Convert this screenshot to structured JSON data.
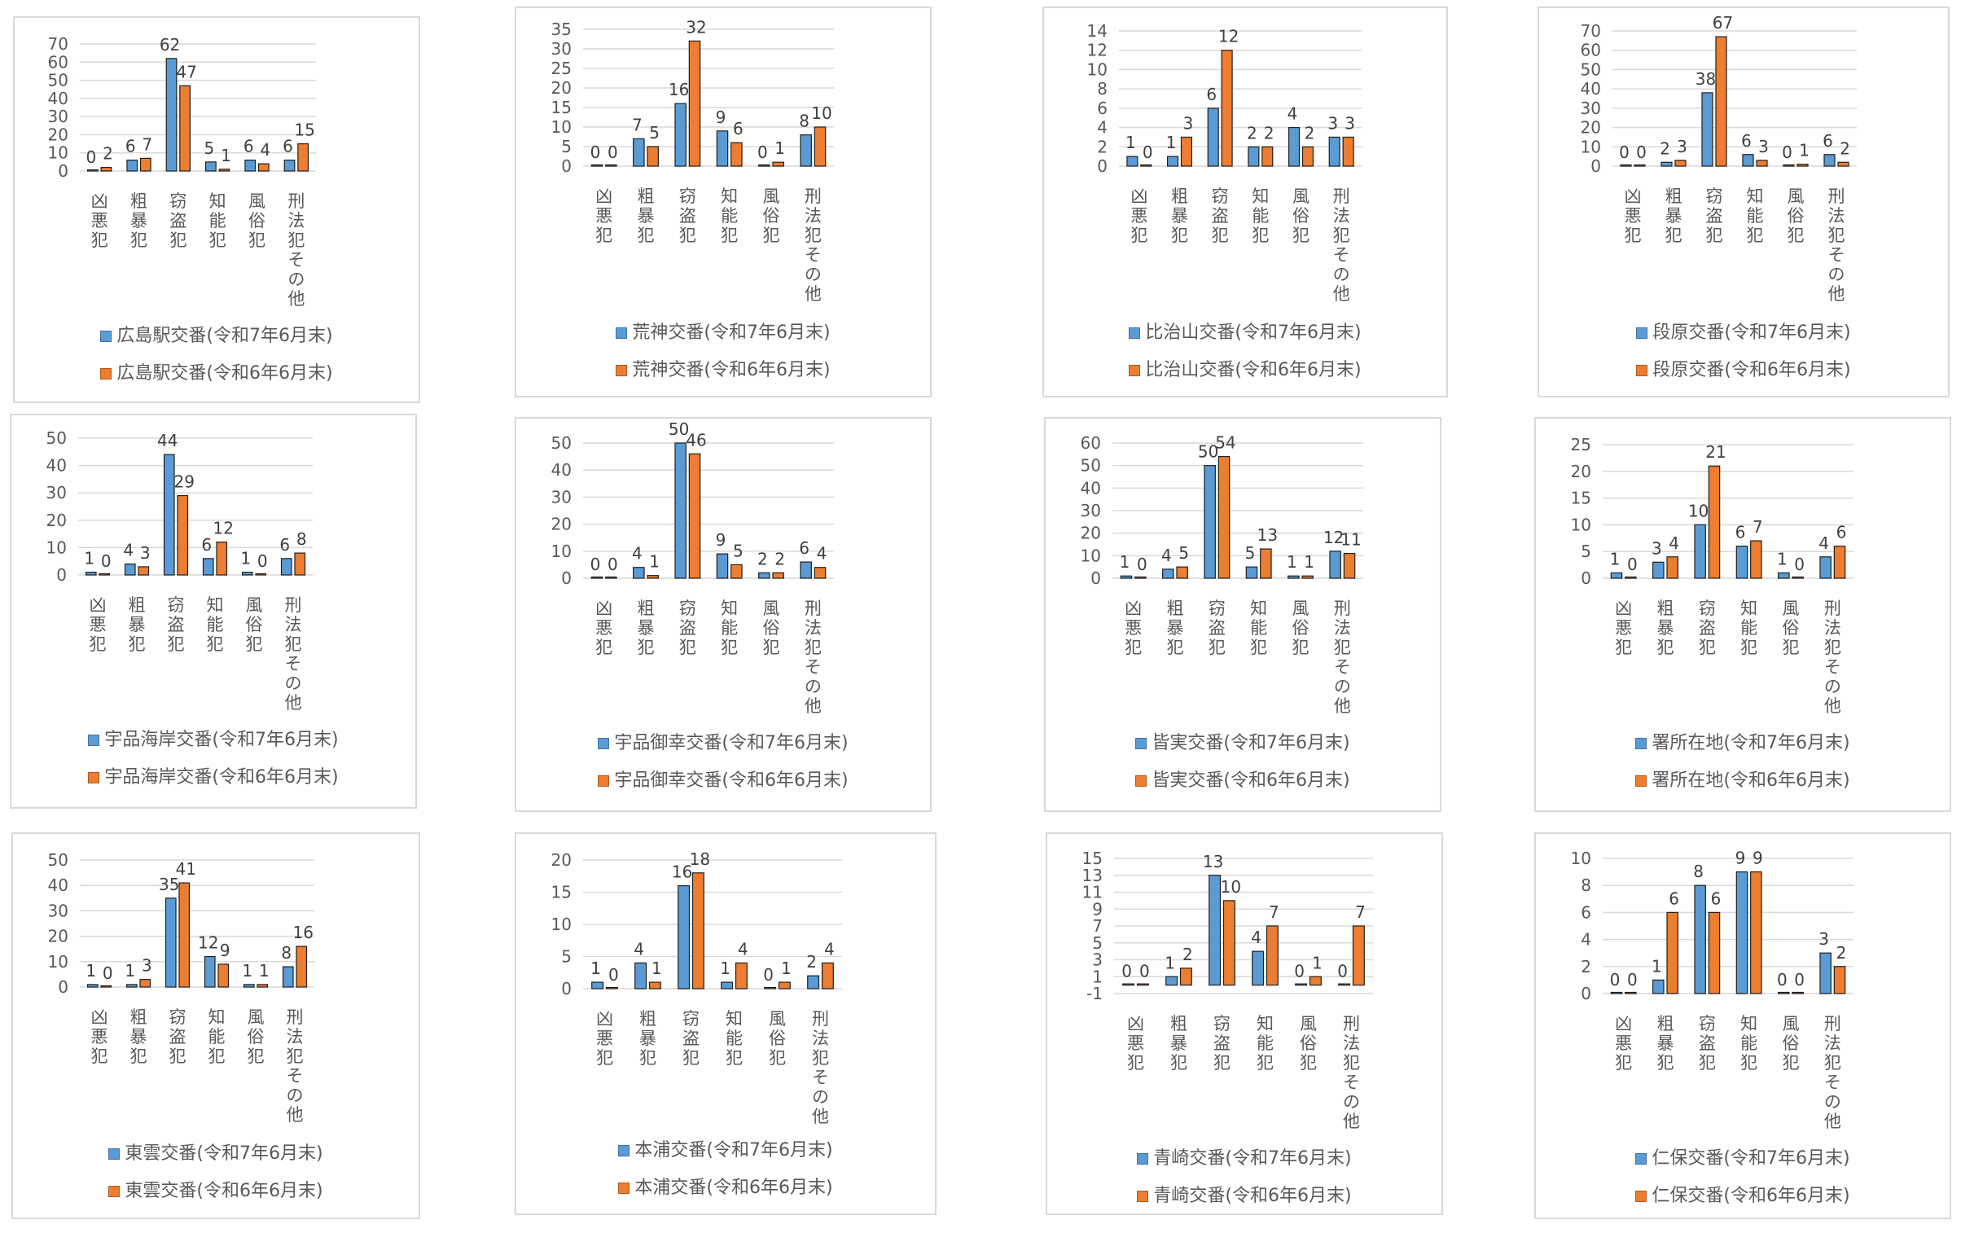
{
  "colors": {
    "series1": "#5b9bd5",
    "series2": "#ed7d31",
    "grid": "#d9d9d9",
    "axis_text": "#595959",
    "label_text": "#404040"
  },
  "categories": [
    "凶悪犯",
    "粗暴犯",
    "窃盗犯",
    "知能犯",
    "風俗犯",
    "刑法犯その他"
  ],
  "chart_data": [
    {
      "type": "bar",
      "categories": [
        "凶悪犯",
        "粗暴犯",
        "窃盗犯",
        "知能犯",
        "風俗犯",
        "刑法犯その他"
      ],
      "ylim": [
        0,
        70
      ],
      "yticks": [
        0,
        10,
        20,
        30,
        40,
        50,
        60,
        70
      ],
      "series": [
        {
          "name": "広島駅交番(令和7年6月末)",
          "values": [
            0,
            6,
            62,
            5,
            6,
            6
          ]
        },
        {
          "name": "広島駅交番(令和6年6月末)",
          "values": [
            2,
            7,
            47,
            1,
            4,
            15
          ]
        }
      ]
    },
    {
      "type": "bar",
      "categories": [
        "凶悪犯",
        "粗暴犯",
        "窃盗犯",
        "知能犯",
        "風俗犯",
        "刑法犯その他"
      ],
      "ylim": [
        0,
        35
      ],
      "yticks": [
        0,
        5,
        10,
        15,
        20,
        25,
        30,
        35
      ],
      "series": [
        {
          "name": "荒神交番(令和7年6月末)",
          "values": [
            0,
            7,
            16,
            9,
            0,
            8
          ]
        },
        {
          "name": "荒神交番(令和6年6月末)",
          "values": [
            0,
            5,
            32,
            6,
            1,
            10
          ]
        }
      ]
    },
    {
      "type": "bar",
      "categories": [
        "凶悪犯",
        "粗暴犯",
        "窃盗犯",
        "知能犯",
        "風俗犯",
        "刑法犯その他"
      ],
      "ylim": [
        0,
        14
      ],
      "yticks": [
        0,
        2,
        4,
        6,
        8,
        10,
        12,
        14
      ],
      "series": [
        {
          "name": "比治山交番(令和7年6月末)",
          "values": [
            1,
            1,
            6,
            2,
            4,
            3
          ]
        },
        {
          "name": "比治山交番(令和6年6月末)",
          "values": [
            0,
            3,
            12,
            2,
            2,
            3
          ]
        }
      ]
    },
    {
      "type": "bar",
      "categories": [
        "凶悪犯",
        "粗暴犯",
        "窃盗犯",
        "知能犯",
        "風俗犯",
        "刑法犯その他"
      ],
      "ylim": [
        0,
        70
      ],
      "yticks": [
        0,
        10,
        20,
        30,
        40,
        50,
        60,
        70
      ],
      "series": [
        {
          "name": "段原交番(令和7年6月末)",
          "values": [
            0,
            2,
            38,
            6,
            0,
            6
          ]
        },
        {
          "name": "段原交番(令和6年6月末)",
          "values": [
            0,
            3,
            67,
            3,
            1,
            2
          ]
        }
      ]
    },
    {
      "type": "bar",
      "categories": [
        "凶悪犯",
        "粗暴犯",
        "窃盗犯",
        "知能犯",
        "風俗犯",
        "刑法犯その他"
      ],
      "ylim": [
        0,
        50
      ],
      "yticks": [
        0,
        10,
        20,
        30,
        40,
        50
      ],
      "series": [
        {
          "name": "宇品海岸交番(令和7年6月末)",
          "values": [
            1,
            4,
            44,
            6,
            1,
            6
          ]
        },
        {
          "name": "宇品海岸交番(令和6年6月末)",
          "values": [
            0,
            3,
            29,
            12,
            0,
            8
          ]
        }
      ]
    },
    {
      "type": "bar",
      "categories": [
        "凶悪犯",
        "粗暴犯",
        "窃盗犯",
        "知能犯",
        "風俗犯",
        "刑法犯その他"
      ],
      "ylim": [
        0,
        50
      ],
      "yticks": [
        0,
        10,
        20,
        30,
        40,
        50
      ],
      "series": [
        {
          "name": "宇品御幸交番(令和7年6月末)",
          "values": [
            0,
            4,
            50,
            9,
            2,
            6
          ]
        },
        {
          "name": "宇品御幸交番(令和6年6月末)",
          "values": [
            0,
            1,
            46,
            5,
            2,
            4
          ]
        }
      ]
    },
    {
      "type": "bar",
      "categories": [
        "凶悪犯",
        "粗暴犯",
        "窃盗犯",
        "知能犯",
        "風俗犯",
        "刑法犯その他"
      ],
      "ylim": [
        0,
        60
      ],
      "yticks": [
        0,
        10,
        20,
        30,
        40,
        50,
        60
      ],
      "series": [
        {
          "name": "皆実交番(令和7年6月末)",
          "values": [
            1,
            4,
            50,
            5,
            1,
            12
          ]
        },
        {
          "name": "皆実交番(令和6年6月末)",
          "values": [
            0,
            5,
            54,
            13,
            1,
            11
          ]
        }
      ]
    },
    {
      "type": "bar",
      "categories": [
        "凶悪犯",
        "粗暴犯",
        "窃盗犯",
        "知能犯",
        "風俗犯",
        "刑法犯その他"
      ],
      "ylim": [
        0,
        25
      ],
      "yticks": [
        0,
        5,
        10,
        15,
        20,
        25
      ],
      "series": [
        {
          "name": "署所在地(令和7年6月末)",
          "values": [
            1,
            3,
            10,
            6,
            1,
            4
          ]
        },
        {
          "name": "署所在地(令和6年6月末)",
          "values": [
            0,
            4,
            21,
            7,
            0,
            6
          ]
        }
      ]
    },
    {
      "type": "bar",
      "categories": [
        "凶悪犯",
        "粗暴犯",
        "窃盗犯",
        "知能犯",
        "風俗犯",
        "刑法犯その他"
      ],
      "ylim": [
        0,
        50
      ],
      "yticks": [
        0,
        10,
        20,
        30,
        40,
        50
      ],
      "series": [
        {
          "name": "東雲交番(令和7年6月末)",
          "values": [
            1,
            1,
            35,
            12,
            1,
            8
          ]
        },
        {
          "name": "東雲交番(令和6年6月末)",
          "values": [
            0,
            3,
            41,
            9,
            1,
            16
          ]
        }
      ]
    },
    {
      "type": "bar",
      "categories": [
        "凶悪犯",
        "粗暴犯",
        "窃盗犯",
        "知能犯",
        "風俗犯",
        "刑法犯その他"
      ],
      "ylim": [
        0,
        20
      ],
      "yticks": [
        0,
        5,
        10,
        15,
        20
      ],
      "series": [
        {
          "name": "本浦交番(令和7年6月末)",
          "values": [
            1,
            4,
            16,
            1,
            0,
            2
          ]
        },
        {
          "name": "本浦交番(令和6年6月末)",
          "values": [
            0,
            1,
            18,
            4,
            1,
            4
          ]
        }
      ]
    },
    {
      "type": "bar",
      "categories": [
        "凶悪犯",
        "粗暴犯",
        "窃盗犯",
        "知能犯",
        "風俗犯",
        "刑法犯その他"
      ],
      "ylim": [
        -1,
        15
      ],
      "yticks": [
        -1,
        1,
        3,
        5,
        7,
        9,
        11,
        13,
        15
      ],
      "series": [
        {
          "name": "青崎交番(令和7年6月末)",
          "values": [
            0,
            1,
            13,
            4,
            0,
            0
          ]
        },
        {
          "name": "青崎交番(令和6年6月末)",
          "values": [
            0,
            2,
            10,
            7,
            1,
            7
          ]
        }
      ]
    },
    {
      "type": "bar",
      "categories": [
        "凶悪犯",
        "粗暴犯",
        "窃盗犯",
        "知能犯",
        "風俗犯",
        "刑法犯その他"
      ],
      "ylim": [
        0,
        10
      ],
      "yticks": [
        0,
        2,
        4,
        6,
        8,
        10
      ],
      "series": [
        {
          "name": "仁保交番(令和7年6月末)",
          "values": [
            0,
            1,
            8,
            9,
            0,
            3
          ]
        },
        {
          "name": "仁保交番(令和6年6月末)",
          "values": [
            0,
            6,
            6,
            9,
            0,
            2
          ]
        }
      ]
    }
  ]
}
